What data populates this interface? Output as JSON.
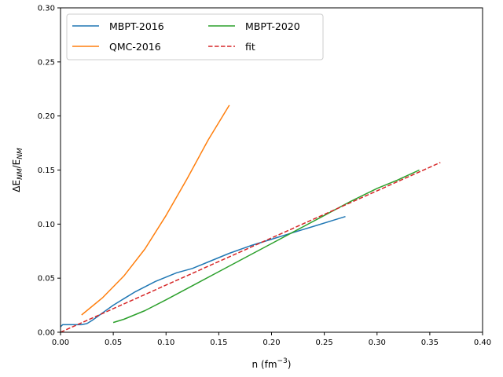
{
  "chart_data": {
    "type": "line",
    "xlabel_text": "n (fm",
    "xlabel_sup": "−3",
    "xlabel_close": ")",
    "ylabel_main": "ΔE",
    "ylabel_sub1": "NM",
    "ylabel_slash": "/E",
    "ylabel_sub2": "NM",
    "xlim": [
      0,
      0.4
    ],
    "ylim": [
      0,
      0.3
    ],
    "xticks": [
      "0.00",
      "0.05",
      "0.10",
      "0.15",
      "0.20",
      "0.25",
      "0.30",
      "0.35",
      "0.40"
    ],
    "yticks": [
      "0.00",
      "0.05",
      "0.10",
      "0.15",
      "0.20",
      "0.25",
      "0.30"
    ],
    "grid": false,
    "legend_position": "upper-left",
    "series": [
      {
        "name": "MBPT-2016",
        "color": "#1f77b4",
        "style": "solid",
        "x": [
          0.0,
          0.002,
          0.005,
          0.01,
          0.015,
          0.02,
          0.025,
          0.03,
          0.04,
          0.05,
          0.06,
          0.07,
          0.08,
          0.09,
          0.1,
          0.11,
          0.125,
          0.14,
          0.16,
          0.18,
          0.2,
          0.22,
          0.24,
          0.26,
          0.27
        ],
        "y": [
          0.005,
          0.007,
          0.007,
          0.007,
          0.007,
          0.007,
          0.008,
          0.011,
          0.018,
          0.025,
          0.031,
          0.037,
          0.042,
          0.047,
          0.051,
          0.055,
          0.059,
          0.065,
          0.073,
          0.08,
          0.086,
          0.092,
          0.098,
          0.104,
          0.107
        ]
      },
      {
        "name": "QMC-2016",
        "color": "#ff7f0e",
        "style": "solid",
        "x": [
          0.02,
          0.04,
          0.06,
          0.08,
          0.1,
          0.12,
          0.14,
          0.16
        ],
        "y": [
          0.016,
          0.032,
          0.052,
          0.077,
          0.108,
          0.142,
          0.178,
          0.21
        ]
      },
      {
        "name": "MBPT-2020",
        "color": "#2ca02c",
        "style": "solid",
        "x": [
          0.05,
          0.06,
          0.08,
          0.1,
          0.125,
          0.15,
          0.175,
          0.2,
          0.225,
          0.25,
          0.275,
          0.3,
          0.32,
          0.34
        ],
        "y": [
          0.009,
          0.012,
          0.02,
          0.03,
          0.043,
          0.056,
          0.069,
          0.082,
          0.095,
          0.108,
          0.121,
          0.133,
          0.141,
          0.15
        ]
      },
      {
        "name": "fit",
        "color": "#d62728",
        "style": "dashed",
        "x": [
          0.0,
          0.36
        ],
        "y": [
          0.0,
          0.157
        ]
      }
    ]
  }
}
